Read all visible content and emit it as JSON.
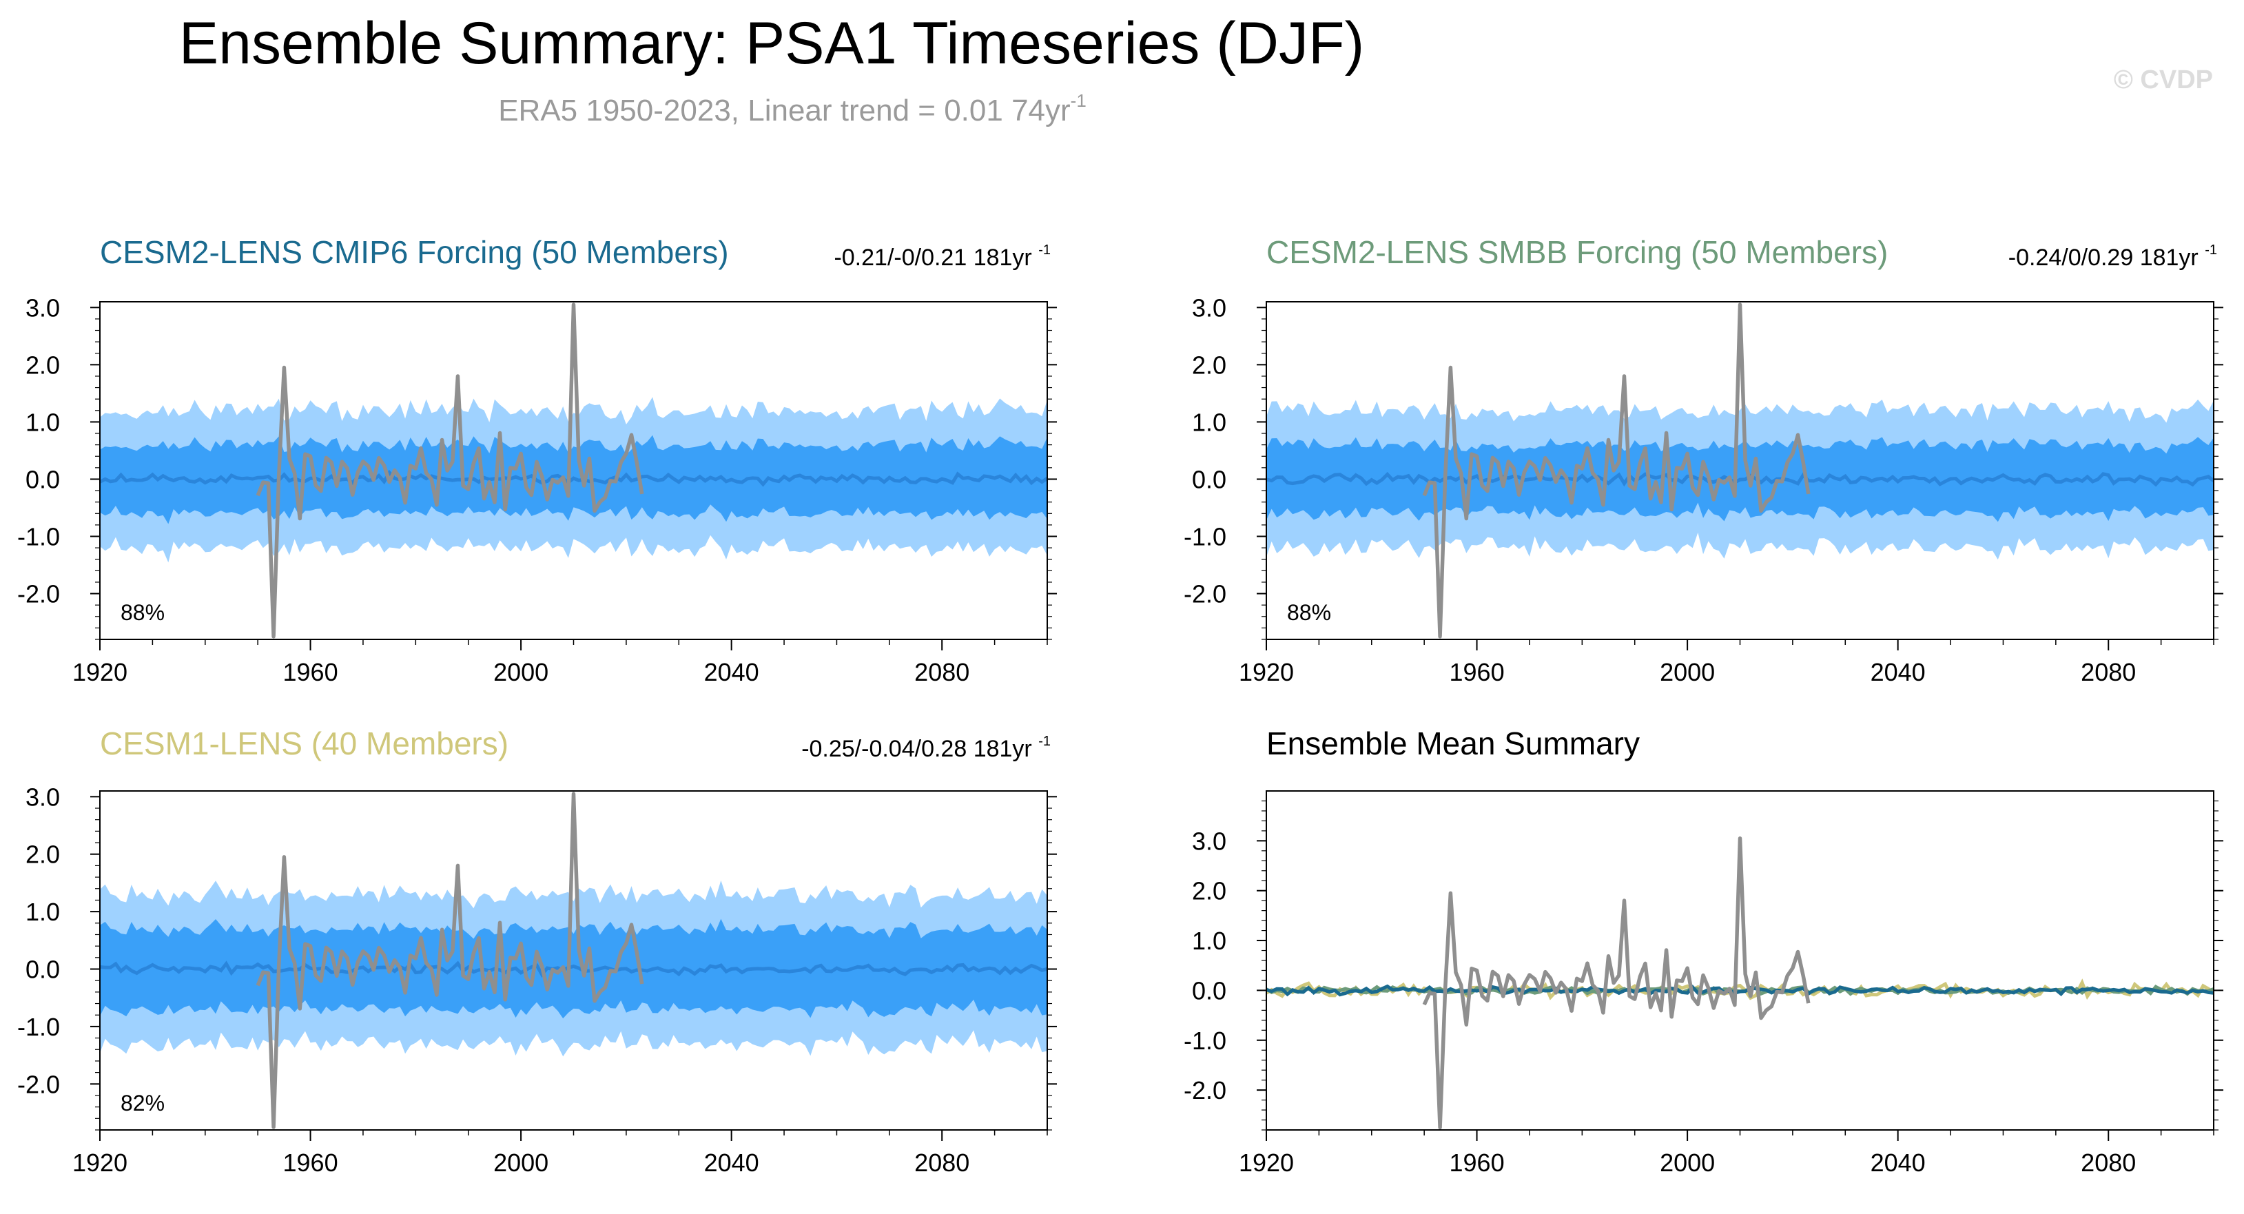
{
  "title": "Ensemble Summary: PSA1 Timeseries (DJF)",
  "subtitle": {
    "text": "ERA5 1950-2023, Linear trend = 0.01 74yr",
    "superscript": "-1"
  },
  "watermark": "© CVDP",
  "colors": {
    "outer_band": "#9fd2ff",
    "inner_band": "#3aa0f8",
    "mean_line": "#2a85db",
    "observations": "#8f8f8f",
    "cesm2_cmip6": "#1a6a8f",
    "cesm2_smbb": "#6d9b7a",
    "cesm1": "#cfc77a"
  },
  "chart_data": [
    {
      "type": "area",
      "title": "CESM2-LENS CMIP6 Forcing (50 Members)",
      "title_color": "#1a6a8f",
      "trend_label": "-0.21/-0/0.21 181yr",
      "trend_superscript": "-1",
      "percent_label": "88%",
      "xlim": [
        1920,
        2100
      ],
      "ylim": [
        -2.8,
        3.1
      ],
      "x_ticks": [
        "1920",
        "1960",
        "2000",
        "2040",
        "2080"
      ],
      "y_ticks": [
        "3.0",
        "2.0",
        "1.0",
        "0.0",
        "-1.0",
        "-2.0"
      ],
      "series": [
        {
          "role": "outer-band",
          "range": [
            -1.2,
            1.2
          ]
        },
        {
          "role": "inner-band",
          "range": [
            -0.6,
            0.6
          ]
        },
        {
          "role": "ensemble-mean",
          "approx": 0.0
        },
        {
          "role": "observations",
          "x_range": [
            1950,
            2023
          ],
          "max": 3.05,
          "min": -2.75
        }
      ]
    },
    {
      "type": "area",
      "title": "CESM2-LENS SMBB Forcing (50 Members)",
      "title_color": "#6d9b7a",
      "trend_label": "-0.24/0/0.29 181yr",
      "trend_superscript": "-1",
      "percent_label": "88%",
      "xlim": [
        1920,
        2100
      ],
      "ylim": [
        -2.8,
        3.1
      ],
      "x_ticks": [
        "1920",
        "1960",
        "2000",
        "2040",
        "2080"
      ],
      "y_ticks": [
        "3.0",
        "2.0",
        "1.0",
        "0.0",
        "-1.0",
        "-2.0"
      ],
      "series": [
        {
          "role": "outer-band",
          "range": [
            -1.2,
            1.2
          ]
        },
        {
          "role": "inner-band",
          "range": [
            -0.6,
            0.6
          ]
        },
        {
          "role": "ensemble-mean",
          "approx": 0.0
        },
        {
          "role": "observations",
          "x_range": [
            1950,
            2023
          ],
          "max": 3.05,
          "min": -2.75
        }
      ]
    },
    {
      "type": "area",
      "title": "CESM1-LENS (40 Members)",
      "title_color": "#cfc77a",
      "trend_label": "-0.25/-0.04/0.28 181yr",
      "trend_superscript": "-1",
      "percent_label": "82%",
      "xlim": [
        1920,
        2100
      ],
      "ylim": [
        -2.8,
        3.1
      ],
      "x_ticks": [
        "1920",
        "1960",
        "2000",
        "2040",
        "2080"
      ],
      "y_ticks": [
        "3.0",
        "2.0",
        "1.0",
        "0.0",
        "-1.0",
        "-2.0"
      ],
      "series": [
        {
          "role": "outer-band",
          "range": [
            -1.3,
            1.3
          ]
        },
        {
          "role": "inner-band",
          "range": [
            -0.7,
            0.7
          ]
        },
        {
          "role": "ensemble-mean",
          "approx": 0.0
        },
        {
          "role": "observations",
          "x_range": [
            1950,
            2023
          ],
          "max": 3.05,
          "min": -2.75
        }
      ]
    },
    {
      "type": "line",
      "title": "Ensemble Mean Summary",
      "title_color": "#000000",
      "xlim": [
        1920,
        2100
      ],
      "ylim": [
        -2.8,
        4.0
      ],
      "x_ticks": [
        "1920",
        "1960",
        "2000",
        "2040",
        "2080"
      ],
      "y_ticks": [
        "3.0",
        "2.0",
        "1.0",
        "0.0",
        "-1.0",
        "-2.0"
      ],
      "series": [
        {
          "role": "cesm2-cmip6-mean",
          "approx": 0.0
        },
        {
          "role": "cesm2-smbb-mean",
          "approx": 0.0
        },
        {
          "role": "cesm1-mean",
          "approx": 0.0
        },
        {
          "role": "observations",
          "x_range": [
            1950,
            2023
          ],
          "max": 3.05,
          "min": -2.75
        }
      ]
    }
  ]
}
